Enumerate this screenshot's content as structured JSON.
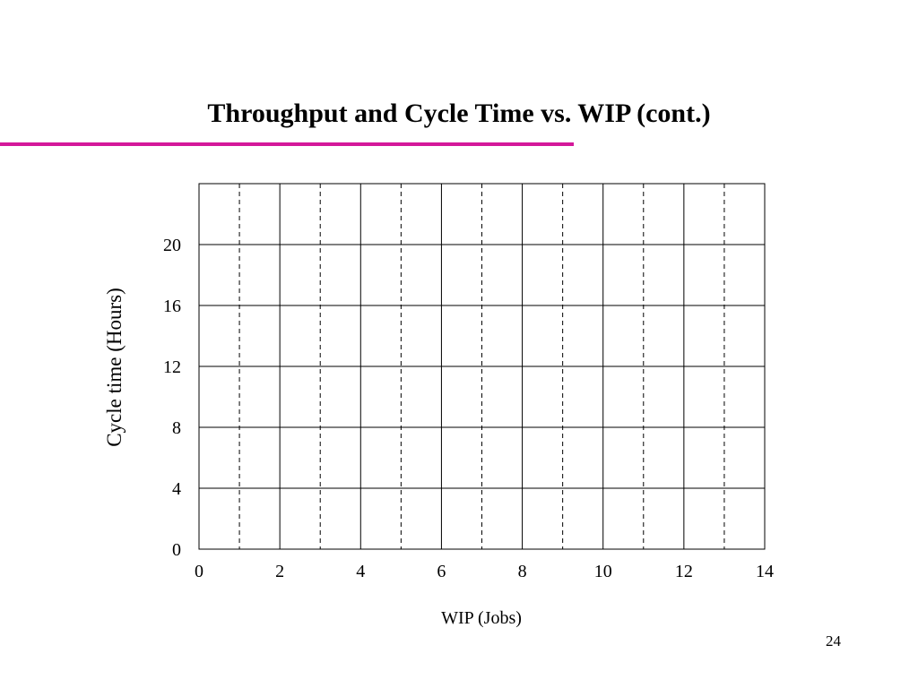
{
  "slide": {
    "title": "Throughput and Cycle Time vs. WIP (cont.)",
    "page_number": "24",
    "accent_color": "#d4189a"
  },
  "chart_data": {
    "type": "line",
    "title": "",
    "xlabel": "WIP (Jobs)",
    "ylabel": "Cycle time (Hours)",
    "xlim": [
      0,
      14
    ],
    "ylim": [
      0,
      24
    ],
    "x_ticks": [
      0,
      2,
      4,
      6,
      8,
      10,
      12,
      14
    ],
    "y_ticks": [
      0,
      4,
      8,
      12,
      16,
      20
    ],
    "x_minor_dashed": [
      1,
      3,
      5,
      7,
      9,
      11,
      13
    ],
    "grid": true,
    "series": []
  }
}
